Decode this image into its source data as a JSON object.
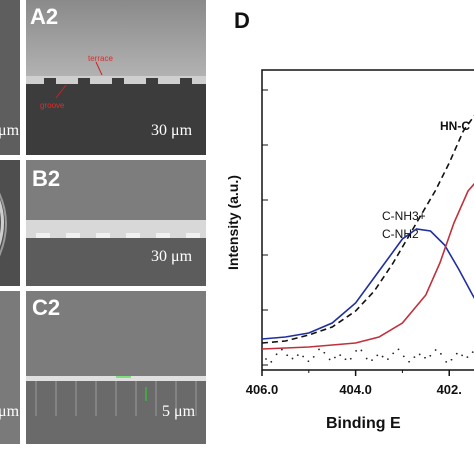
{
  "panels": {
    "A2": {
      "label": "A2",
      "scale": "30 μm",
      "annotations": {
        "terrace": "terrace",
        "groove": "groove"
      }
    },
    "B2": {
      "label": "B2",
      "scale": "30 μm"
    },
    "C2": {
      "label": "C2",
      "scale": "5 μm"
    },
    "left_scales": {
      "top": "μm",
      "bottom": "μm"
    }
  },
  "chart_data": {
    "type": "line",
    "panel_label": "D",
    "xlabel": "Binding E",
    "ylabel": "Intensity (a.u.)",
    "x_ticks": [
      "406.0",
      "404.0",
      "402."
    ],
    "annotations": [
      "HN-C",
      "C-NH3+",
      "C-NH2"
    ],
    "x_reversed": true,
    "xlim": [
      406.0,
      401.3
    ],
    "series": [
      {
        "color": "#1f2f9f",
        "x": [
          406.0,
          405.5,
          405.0,
          404.5,
          404.0,
          403.5,
          403.0,
          402.7,
          402.4,
          402.1,
          401.8,
          401.5,
          401.3
        ],
        "y": [
          0.08,
          0.09,
          0.11,
          0.16,
          0.26,
          0.42,
          0.58,
          0.63,
          0.62,
          0.55,
          0.43,
          0.3,
          0.22
        ]
      },
      {
        "color": "#c0303a",
        "x": [
          406.0,
          405.0,
          404.0,
          403.5,
          403.0,
          402.5,
          402.2,
          401.9,
          401.6,
          401.3
        ],
        "y": [
          0.03,
          0.04,
          0.06,
          0.09,
          0.16,
          0.3,
          0.46,
          0.66,
          0.82,
          0.9
        ]
      },
      {
        "color": "#111111",
        "dashed": true,
        "x": [
          406.0,
          405.5,
          405.0,
          404.5,
          404.0,
          403.6,
          403.2,
          402.9,
          402.6,
          402.3,
          402.0,
          401.7,
          401.3
        ],
        "y": [
          0.06,
          0.07,
          0.1,
          0.14,
          0.22,
          0.32,
          0.46,
          0.58,
          0.7,
          0.82,
          0.96,
          1.12,
          1.25
        ]
      }
    ]
  }
}
